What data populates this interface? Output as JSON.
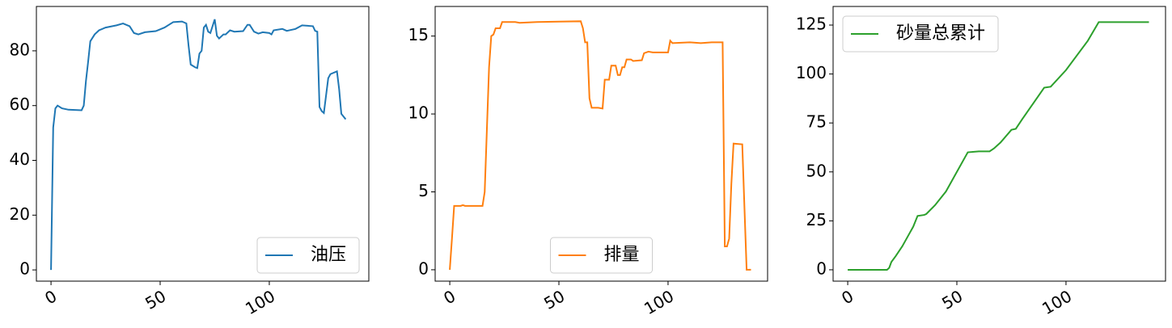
{
  "chart_data": [
    {
      "type": "line",
      "legend": "lower right",
      "x": [
        0,
        1,
        2,
        3,
        5,
        8,
        14,
        15,
        16,
        17,
        18,
        20,
        22,
        25,
        30,
        33,
        36,
        38,
        40,
        43,
        48,
        52,
        56,
        60,
        62,
        63,
        64,
        66,
        67,
        68,
        69,
        70,
        71,
        72,
        73,
        75,
        76,
        77,
        79,
        80,
        82,
        84,
        88,
        90,
        91,
        93,
        95,
        97,
        100,
        101,
        102,
        106,
        108,
        112,
        115,
        120,
        121,
        122,
        123,
        124,
        125,
        127,
        128,
        131,
        132,
        133,
        135
      ],
      "series": [
        {
          "name": "油压",
          "color": "#1f77b4",
          "values": [
            0,
            52,
            59,
            60,
            59,
            58.5,
            58.3,
            60,
            69,
            76,
            83.5,
            86,
            87.5,
            88.5,
            89.3,
            90,
            89,
            86.5,
            86,
            86.8,
            87.2,
            88.5,
            90.5,
            90.7,
            90,
            82,
            75,
            74,
            73.7,
            79,
            80,
            88.5,
            89.5,
            87,
            86.5,
            91.5,
            85.5,
            84.5,
            86,
            86,
            87.5,
            87,
            87.2,
            89.5,
            89.5,
            87,
            86.3,
            86.8,
            86.5,
            86,
            87.5,
            88,
            87.3,
            88,
            89.3,
            89,
            87.3,
            87,
            59.5,
            58,
            57.3,
            70,
            71.5,
            72.5,
            66,
            57,
            55
          ]
        }
      ],
      "xlim": [
        -6.7,
        145.6
      ],
      "ylim": [
        -4.1,
        96.2
      ],
      "xticks": [
        0,
        50,
        100
      ],
      "yticks": [
        0,
        20,
        40,
        60,
        80
      ]
    },
    {
      "type": "line",
      "legend": "lower center",
      "x": [
        0,
        1,
        2,
        5,
        6,
        7,
        15,
        16,
        17,
        18,
        19,
        20,
        21,
        23,
        24,
        30,
        32,
        40,
        50,
        60,
        61,
        62,
        63,
        64,
        65,
        68,
        70,
        71,
        73,
        74,
        76,
        77,
        78,
        79,
        80,
        81,
        83,
        84,
        88,
        89,
        91,
        93,
        100,
        101,
        102,
        110,
        115,
        120,
        125,
        126,
        127,
        128,
        129,
        130,
        134,
        135,
        136,
        138
      ],
      "series": [
        {
          "name": "排量",
          "color": "#ff7f0e",
          "values": [
            0,
            2,
            4.1,
            4.1,
            4.15,
            4.1,
            4.1,
            5,
            9,
            13,
            15,
            15.1,
            15.5,
            15.5,
            15.9,
            15.9,
            15.85,
            15.9,
            15.93,
            15.95,
            15.5,
            14.6,
            14.6,
            11,
            10.4,
            10.4,
            10.35,
            12.2,
            12.2,
            13.1,
            13.1,
            12.5,
            12.5,
            13,
            13,
            13.5,
            13.5,
            13.4,
            13.45,
            13.9,
            14,
            13.95,
            13.95,
            14.7,
            14.55,
            14.6,
            14.55,
            14.6,
            14.6,
            1.5,
            1.5,
            2,
            5.5,
            8.1,
            8.05,
            4,
            0,
            0
          ]
        }
      ],
      "xlim": [
        -6.7,
        145.6
      ],
      "ylim": [
        -0.73,
        16.9
      ],
      "xticks": [
        0,
        50,
        100
      ],
      "yticks": [
        0,
        5,
        10,
        15
      ]
    },
    {
      "type": "line",
      "legend": "upper left",
      "x": [
        0,
        18,
        19,
        20,
        22,
        25,
        28,
        30,
        32,
        35,
        36,
        40,
        45,
        50,
        55,
        60,
        65,
        67,
        70,
        75,
        77,
        80,
        90,
        93,
        100,
        110,
        115,
        138
      ],
      "series": [
        {
          "name": "砂量总累计",
          "color": "#2ca02c",
          "values": [
            0,
            0,
            1,
            4,
            7,
            12,
            18,
            22,
            27.5,
            28,
            28.5,
            33,
            40,
            50,
            60,
            60.5,
            60.5,
            62,
            65,
            71.5,
            72,
            77,
            93,
            93.5,
            102,
            117,
            126.5,
            126.5
          ]
        }
      ],
      "xlim": [
        -6.7,
        145.6
      ],
      "ylim": [
        -5.8,
        134.5
      ],
      "xticks": [
        0,
        50,
        100
      ],
      "yticks": [
        0,
        25,
        50,
        75,
        100,
        125
      ]
    }
  ]
}
